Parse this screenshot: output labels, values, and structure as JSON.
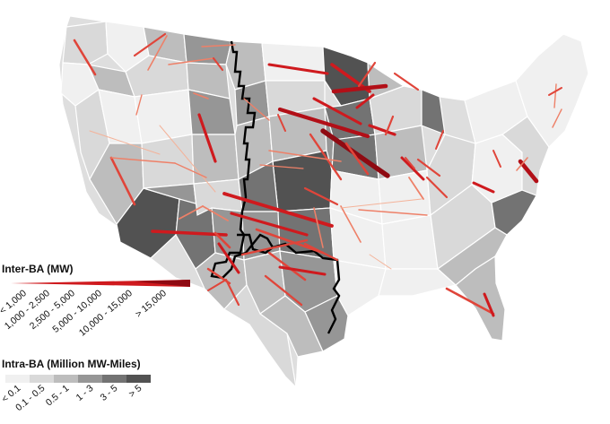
{
  "legend_inter": {
    "title": "Inter-BA (MW)",
    "classes": [
      "< 1,000",
      "1,000 - 2,500",
      "2,500 - 5,000",
      "5,000 - 10,000",
      "10,000 - 15,000",
      "> 15,000"
    ],
    "colors": [
      "#f4b39a",
      "#ee8068",
      "#e0453a",
      "#cf1a1e",
      "#b20f17",
      "#8f0a12"
    ]
  },
  "legend_intra": {
    "title": "Intra-BA (Million MW-Miles)",
    "classes": [
      "< 0.1",
      "0.1 - 0.5",
      "0.5 - 1",
      "1 - 3",
      "3 - 5",
      "> 5"
    ],
    "colors": [
      "#f0f0f0",
      "#d9d9d9",
      "#bdbdbd",
      "#969696",
      "#737373",
      "#525252"
    ]
  },
  "map_colors": {
    "background": "#ffffff",
    "border": "#ffffff",
    "interconnection_boundary": "#000000"
  }
}
